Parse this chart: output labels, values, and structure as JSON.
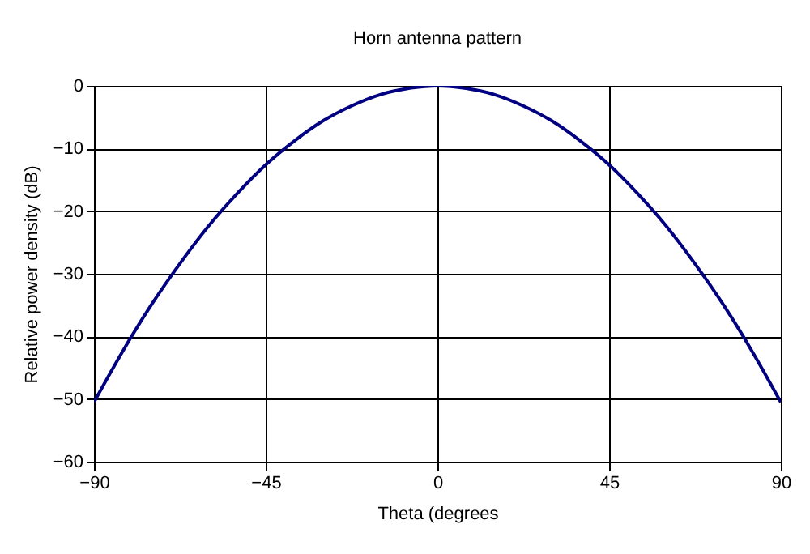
{
  "chart_data": {
    "type": "line",
    "title": "Horn antenna pattern",
    "xlabel": "Theta (degrees",
    "ylabel": "Relative power density (dB)",
    "x": [
      -90,
      -82.5,
      -75,
      -67.5,
      -60,
      -52.5,
      -45,
      -37.5,
      -30,
      -22.5,
      -15,
      -7.5,
      0,
      7.5,
      15,
      22.5,
      30,
      37.5,
      45,
      52.5,
      60,
      67.5,
      75,
      82.5,
      90
    ],
    "series": [
      {
        "color": "#000080",
        "values": [
          -50.5,
          -42.4,
          -35,
          -28.4,
          -22.4,
          -17.2,
          -12.6,
          -8.8,
          -5.6,
          -3.2,
          -1.4,
          -0.4,
          0,
          -0.4,
          -1.4,
          -3.2,
          -5.6,
          -8.8,
          -12.6,
          -17.2,
          -22.4,
          -28.4,
          -35,
          -42.4,
          -50.5
        ]
      }
    ],
    "xlim": [
      -90,
      90
    ],
    "xticks": [
      -90,
      -45,
      0,
      45,
      90
    ],
    "ylim": [
      -60,
      0
    ],
    "yticks": [
      -60,
      -50,
      -40,
      -30,
      -20,
      -10,
      0
    ],
    "grid": true,
    "marker": "none",
    "line_style": "solid"
  }
}
